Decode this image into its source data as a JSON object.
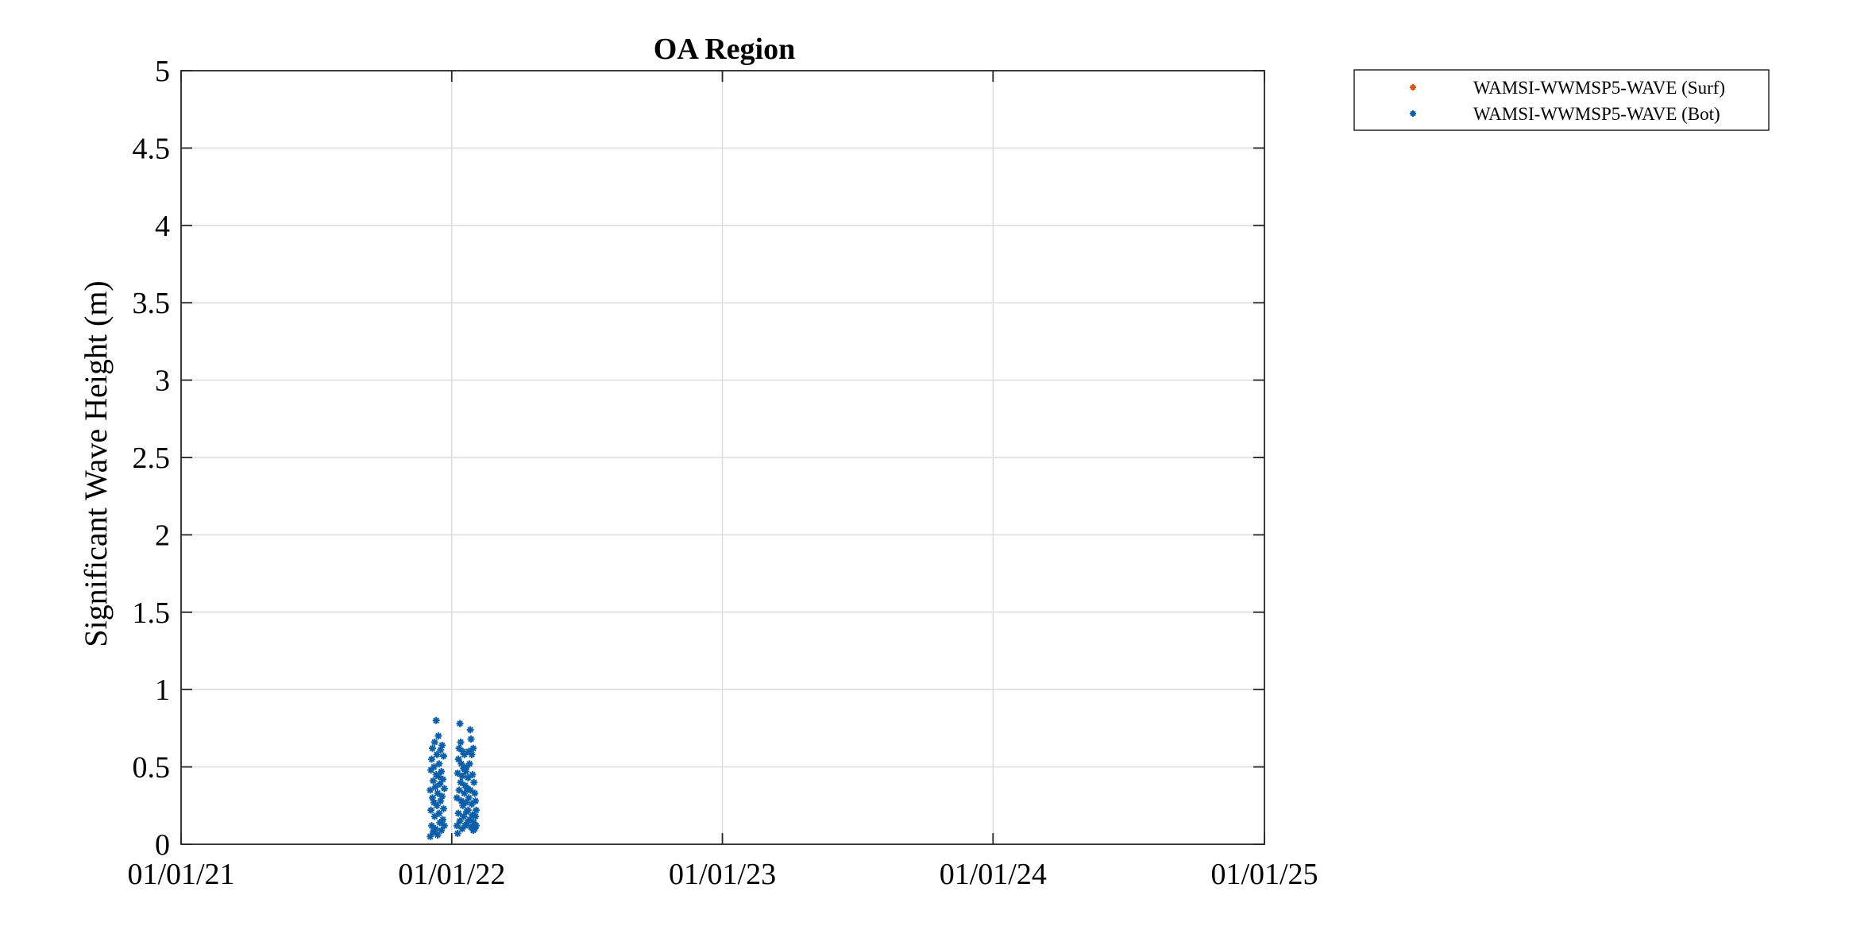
{
  "chart_data": {
    "type": "scatter",
    "title": "OA Region",
    "xlabel": "",
    "ylabel": "Significant Wave Height (m)",
    "x_axis": {
      "type": "date",
      "min": "2021-01-01",
      "max": "2025-01-01",
      "ticks": [
        "2021-01-01",
        "2022-01-01",
        "2023-01-01",
        "2024-01-01",
        "2025-01-01"
      ],
      "tick_labels": [
        "01/01/21",
        "01/01/22",
        "01/01/23",
        "01/01/24",
        "01/01/25"
      ]
    },
    "y_axis": {
      "min": 0,
      "max": 5,
      "ticks": [
        0,
        0.5,
        1,
        1.5,
        2,
        2.5,
        3,
        3.5,
        4,
        4.5,
        5
      ],
      "tick_labels": [
        "0",
        "0.5",
        "1",
        "1.5",
        "2",
        "2.5",
        "3",
        "3.5",
        "4",
        "4.5",
        "5"
      ]
    },
    "grid": true,
    "legend_position": "outside-top-right",
    "series": [
      {
        "name": "WAMSI-WWMSP5-WAVE (Surf)",
        "color": "#d95319",
        "marker": "asterisk",
        "points": []
      },
      {
        "name": "WAMSI-WWMSP5-WAVE (Bot)",
        "color": "#0b5ea8",
        "marker": "asterisk",
        "points": [
          [
            "2021-12-03",
            0.35
          ],
          [
            "2021-12-03",
            0.05
          ],
          [
            "2021-12-04",
            0.48
          ],
          [
            "2021-12-04",
            0.22
          ],
          [
            "2021-12-05",
            0.55
          ],
          [
            "2021-12-05",
            0.12
          ],
          [
            "2021-12-06",
            0.3
          ],
          [
            "2021-12-06",
            0.62
          ],
          [
            "2021-12-07",
            0.41
          ],
          [
            "2021-12-07",
            0.08
          ],
          [
            "2021-12-08",
            0.27
          ],
          [
            "2021-12-08",
            0.5
          ],
          [
            "2021-12-09",
            0.18
          ],
          [
            "2021-12-09",
            0.66
          ],
          [
            "2021-12-10",
            0.37
          ],
          [
            "2021-12-10",
            0.1
          ],
          [
            "2021-12-11",
            0.8
          ],
          [
            "2021-12-11",
            0.45
          ],
          [
            "2021-12-12",
            0.25
          ],
          [
            "2021-12-12",
            0.58
          ],
          [
            "2021-12-13",
            0.06
          ],
          [
            "2021-12-13",
            0.33
          ],
          [
            "2021-12-14",
            0.7
          ],
          [
            "2021-12-14",
            0.44
          ],
          [
            "2021-12-15",
            0.2
          ],
          [
            "2021-12-15",
            0.52
          ],
          [
            "2021-12-16",
            0.14
          ],
          [
            "2021-12-16",
            0.39
          ],
          [
            "2021-12-17",
            0.61
          ],
          [
            "2021-12-17",
            0.28
          ],
          [
            "2021-12-18",
            0.09
          ],
          [
            "2021-12-18",
            0.47
          ],
          [
            "2021-12-19",
            0.64
          ],
          [
            "2021-12-19",
            0.31
          ],
          [
            "2021-12-20",
            0.16
          ],
          [
            "2021-12-20",
            0.42
          ],
          [
            "2021-12-21",
            0.57
          ],
          [
            "2021-12-21",
            0.23
          ],
          [
            "2021-12-22",
            0.12
          ],
          [
            "2021-12-22",
            0.36
          ],
          [
            "2022-01-08",
            0.3
          ],
          [
            "2022-01-08",
            0.12
          ],
          [
            "2022-01-09",
            0.46
          ],
          [
            "2022-01-09",
            0.07
          ],
          [
            "2022-01-10",
            0.55
          ],
          [
            "2022-01-10",
            0.2
          ],
          [
            "2022-01-11",
            0.62
          ],
          [
            "2022-01-11",
            0.35
          ],
          [
            "2022-01-12",
            0.78
          ],
          [
            "2022-01-12",
            0.15
          ],
          [
            "2022-01-13",
            0.66
          ],
          [
            "2022-01-13",
            0.4
          ],
          [
            "2022-01-14",
            0.28
          ],
          [
            "2022-01-14",
            0.52
          ],
          [
            "2022-01-15",
            0.1
          ],
          [
            "2022-01-15",
            0.44
          ],
          [
            "2022-01-16",
            0.6
          ],
          [
            "2022-01-16",
            0.25
          ],
          [
            "2022-01-17",
            0.18
          ],
          [
            "2022-01-17",
            0.49
          ],
          [
            "2022-01-18",
            0.33
          ],
          [
            "2022-01-18",
            0.58
          ],
          [
            "2022-01-19",
            0.12
          ],
          [
            "2022-01-19",
            0.38
          ],
          [
            "2022-01-20",
            0.27
          ],
          [
            "2022-01-20",
            0.47
          ],
          [
            "2022-01-21",
            0.5
          ],
          [
            "2022-01-21",
            0.21
          ],
          [
            "2022-01-22",
            0.14
          ],
          [
            "2022-01-22",
            0.36
          ],
          [
            "2022-01-23",
            0.22
          ],
          [
            "2022-01-23",
            0.43
          ],
          [
            "2022-01-24",
            0.6
          ],
          [
            "2022-01-24",
            0.3
          ],
          [
            "2022-01-25",
            0.16
          ],
          [
            "2022-01-25",
            0.52
          ],
          [
            "2022-01-26",
            0.74
          ],
          [
            "2022-01-26",
            0.35
          ],
          [
            "2022-01-27",
            0.68
          ],
          [
            "2022-01-27",
            0.11
          ],
          [
            "2022-01-28",
            0.58
          ],
          [
            "2022-01-28",
            0.26
          ],
          [
            "2022-01-29",
            0.45
          ],
          [
            "2022-01-29",
            0.19
          ],
          [
            "2022-01-30",
            0.62
          ],
          [
            "2022-01-30",
            0.09
          ],
          [
            "2022-01-31",
            0.4
          ],
          [
            "2022-01-31",
            0.14
          ],
          [
            "2022-02-01",
            0.33
          ],
          [
            "2022-02-01",
            0.1
          ],
          [
            "2022-02-02",
            0.28
          ],
          [
            "2022-02-02",
            0.18
          ],
          [
            "2022-02-03",
            0.22
          ],
          [
            "2022-02-03",
            0.12
          ]
        ]
      }
    ]
  }
}
